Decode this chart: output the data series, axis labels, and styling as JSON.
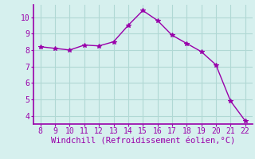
{
  "x": [
    8,
    9,
    10,
    11,
    12,
    13,
    14,
    15,
    16,
    17,
    18,
    19,
    20,
    21,
    22
  ],
  "y": [
    8.2,
    8.1,
    8.0,
    8.3,
    8.25,
    8.5,
    9.5,
    10.4,
    9.8,
    8.9,
    8.4,
    7.9,
    7.1,
    4.9,
    3.7
  ],
  "line_color": "#9900aa",
  "marker": "*",
  "bg_color": "#d6f0ee",
  "grid_color": "#b0d8d4",
  "xlabel": "Windchill (Refroidissement éolien,°C)",
  "xlabel_color": "#9900aa",
  "tick_color": "#9900aa",
  "xlim": [
    7.5,
    22.5
  ],
  "ylim": [
    3.5,
    10.75
  ],
  "xticks": [
    8,
    9,
    10,
    11,
    12,
    13,
    14,
    15,
    16,
    17,
    18,
    19,
    20,
    21,
    22
  ],
  "yticks": [
    4,
    5,
    6,
    7,
    8,
    9,
    10
  ],
  "spine_color": "#9900aa",
  "font_family": "monospace",
  "tick_fontsize": 7,
  "xlabel_fontsize": 7.5
}
